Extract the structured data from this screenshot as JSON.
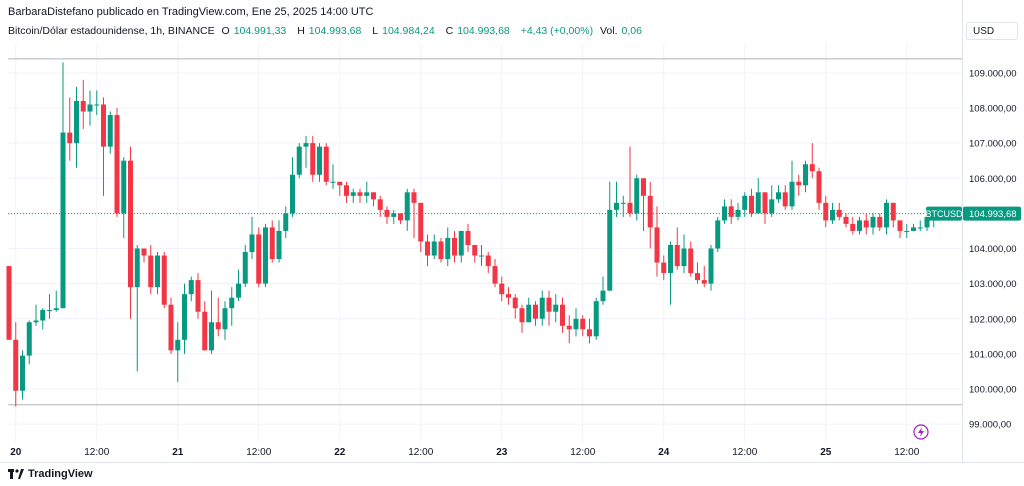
{
  "header": {
    "publisher": "BarbaraDistefano publicado en TradingView.com, Ene 25, 2025 14:00 UTC",
    "symbol": "Bitcoin/Dólar estadounidense, 1h, BINANCE",
    "o_label": "O",
    "o_value": "104.991,33",
    "h_label": "H",
    "h_value": "104.993,68",
    "l_label": "L",
    "l_value": "104.984,24",
    "c_label": "C",
    "c_value": "104.993,68",
    "change": "+4,43 (+0,00%)",
    "vol_label": "Vol.",
    "vol_value": "0,06"
  },
  "currency": "USD",
  "price_tag": {
    "symbol": "BTCUSD",
    "value": "104.993,68",
    "color": "#089981"
  },
  "footer": {
    "brand": "TradingView"
  },
  "colors": {
    "up": "#089981",
    "down": "#f23645",
    "grid": "#f0f3fa",
    "line": "#b2b5be"
  },
  "chart_data": {
    "type": "candlestick",
    "title": "Bitcoin/Dólar estadounidense, 1h, BINANCE",
    "ylim": [
      98600,
      109800
    ],
    "yticks": [
      99000,
      100000,
      101000,
      102000,
      103000,
      104000,
      105000,
      106000,
      107000,
      108000,
      109000
    ],
    "ytick_labels": [
      "99.000,00",
      "100.000,00",
      "101.000,00",
      "102.000,00",
      "103.000,00",
      "104.000,00",
      "105.000,00",
      "106.000,00",
      "107.000,00",
      "108.000,00",
      "109.000,00"
    ],
    "xticks": [
      {
        "i": 1,
        "label": "20"
      },
      {
        "i": 13,
        "label": "12:00"
      },
      {
        "i": 25,
        "label": "21"
      },
      {
        "i": 37,
        "label": "12:00"
      },
      {
        "i": 49,
        "label": "22"
      },
      {
        "i": 61,
        "label": "12:00"
      },
      {
        "i": 73,
        "label": "23"
      },
      {
        "i": 85,
        "label": "12:00"
      },
      {
        "i": 97,
        "label": "24"
      },
      {
        "i": 109,
        "label": "12:00"
      },
      {
        "i": 121,
        "label": "25"
      },
      {
        "i": 133,
        "label": "12:00"
      }
    ],
    "range_lines": [
      109400,
      99550
    ],
    "last_price": 104993.68,
    "candles": [
      [
        103500,
        101400,
        103500,
        101400
      ],
      [
        101400,
        99950,
        101900,
        99500
      ],
      [
        99950,
        100950,
        101100,
        99700
      ],
      [
        100950,
        101900,
        101950,
        100700
      ],
      [
        101900,
        101950,
        102400,
        101800
      ],
      [
        101950,
        102250,
        102300,
        101700
      ],
      [
        102250,
        102250,
        102700,
        102000
      ],
      [
        102250,
        102300,
        102800,
        102200
      ],
      [
        102300,
        107300,
        109300,
        102300
      ],
      [
        107300,
        107000,
        108300,
        106500
      ],
      [
        107000,
        108200,
        108600,
        106300
      ],
      [
        108200,
        107900,
        108800,
        107400
      ],
      [
        107900,
        108100,
        108500,
        107500
      ],
      [
        108100,
        108100,
        108500,
        107800
      ],
      [
        108100,
        106900,
        108300,
        105500
      ],
      [
        106900,
        107800,
        107900,
        106700
      ],
      [
        107800,
        105000,
        108000,
        104900
      ],
      [
        105000,
        106500,
        106600,
        104300
      ],
      [
        106500,
        102900,
        106900,
        102000
      ],
      [
        102900,
        104000,
        104100,
        100500
      ],
      [
        104000,
        103800,
        104000,
        103600
      ],
      [
        103800,
        102900,
        104100,
        102700
      ],
      [
        102900,
        103800,
        103900,
        102700
      ],
      [
        103800,
        102400,
        103900,
        102300
      ],
      [
        102400,
        101100,
        102600,
        101000
      ],
      [
        101100,
        101400,
        101900,
        100200
      ],
      [
        101400,
        102700,
        103000,
        101000
      ],
      [
        102700,
        103100,
        103200,
        102500
      ],
      [
        103100,
        102200,
        103300,
        102000
      ],
      [
        102200,
        101100,
        102500,
        101100
      ],
      [
        101100,
        101900,
        102800,
        101000
      ],
      [
        101900,
        101700,
        102600,
        101500
      ],
      [
        101700,
        102300,
        102500,
        101400
      ],
      [
        102300,
        102600,
        102900,
        101800
      ],
      [
        102600,
        103000,
        103400,
        102500
      ],
      [
        103000,
        103900,
        104100,
        102900
      ],
      [
        103900,
        104400,
        104900,
        103700
      ],
      [
        104400,
        103000,
        104600,
        102900
      ],
      [
        103000,
        104600,
        104700,
        102900
      ],
      [
        104600,
        103700,
        104800,
        103600
      ],
      [
        103700,
        104500,
        104800,
        103600
      ],
      [
        104500,
        105000,
        105200,
        104300
      ],
      [
        105000,
        106100,
        106600,
        104900
      ],
      [
        106100,
        106900,
        107000,
        106000
      ],
      [
        106900,
        107000,
        107200,
        106300
      ],
      [
        107000,
        106100,
        107200,
        105900
      ],
      [
        106100,
        106900,
        107000,
        105900
      ],
      [
        106900,
        105900,
        107000,
        105800
      ],
      [
        105900,
        105900,
        106400,
        105700
      ],
      [
        105900,
        105800,
        105900,
        105500
      ],
      [
        105800,
        105500,
        105900,
        105300
      ],
      [
        105500,
        105600,
        105700,
        105300
      ],
      [
        105600,
        105500,
        105700,
        105300
      ],
      [
        105500,
        105600,
        105900,
        105300
      ],
      [
        105600,
        105400,
        105600,
        105200
      ],
      [
        105400,
        105100,
        105500,
        104900
      ],
      [
        105100,
        104900,
        105200,
        104700
      ],
      [
        104900,
        105000,
        105100,
        104700
      ],
      [
        105000,
        104800,
        105000,
        104700
      ],
      [
        104800,
        105600,
        105700,
        104500
      ],
      [
        105600,
        105300,
        105700,
        104300
      ],
      [
        105300,
        104200,
        105300,
        103900
      ],
      [
        104200,
        103800,
        104400,
        103500
      ],
      [
        103800,
        104200,
        104400,
        103700
      ],
      [
        104200,
        103700,
        104300,
        103600
      ],
      [
        103700,
        104300,
        104600,
        103500
      ],
      [
        104300,
        103800,
        104500,
        103600
      ],
      [
        103800,
        104500,
        104500,
        103600
      ],
      [
        104500,
        104100,
        104700,
        103900
      ],
      [
        104100,
        103800,
        104100,
        103600
      ],
      [
        103800,
        103800,
        104100,
        103500
      ],
      [
        103800,
        103500,
        103900,
        103300
      ],
      [
        103500,
        103000,
        103700,
        102900
      ],
      [
        103000,
        102700,
        103200,
        102500
      ],
      [
        102700,
        102600,
        102900,
        102400
      ],
      [
        102600,
        102300,
        102700,
        102000
      ],
      [
        102300,
        101900,
        102400,
        101600
      ],
      [
        101900,
        102400,
        102600,
        101900
      ],
      [
        102400,
        102000,
        102500,
        101800
      ],
      [
        102000,
        102600,
        102800,
        101800
      ],
      [
        102600,
        102200,
        102800,
        101800
      ],
      [
        102200,
        102400,
        102700,
        101900
      ],
      [
        102400,
        101800,
        102600,
        101600
      ],
      [
        101800,
        101700,
        102100,
        101300
      ],
      [
        101700,
        102000,
        102300,
        101500
      ],
      [
        102000,
        101700,
        102100,
        101500
      ],
      [
        101700,
        101500,
        102000,
        101300
      ],
      [
        101500,
        102500,
        102600,
        101400
      ],
      [
        102500,
        102800,
        103200,
        102400
      ],
      [
        102800,
        105100,
        105900,
        102800
      ],
      [
        105100,
        105300,
        105900,
        104900
      ],
      [
        105300,
        105300,
        105500,
        104900
      ],
      [
        105300,
        105000,
        106900,
        104900
      ],
      [
        105000,
        106000,
        106100,
        104800
      ],
      [
        106000,
        105500,
        106000,
        104500
      ],
      [
        105500,
        104600,
        105900,
        104000
      ],
      [
        104600,
        103600,
        105200,
        103200
      ],
      [
        103600,
        103300,
        103800,
        103100
      ],
      [
        103300,
        104100,
        104200,
        102400
      ],
      [
        104100,
        103500,
        104600,
        103400
      ],
      [
        103500,
        104000,
        104400,
        103300
      ],
      [
        104000,
        103300,
        104200,
        103200
      ],
      [
        103300,
        103100,
        103600,
        103000
      ],
      [
        103100,
        103000,
        103500,
        102900
      ],
      [
        103000,
        104000,
        104100,
        102800
      ],
      [
        104000,
        104800,
        104900,
        103900
      ],
      [
        104800,
        105200,
        105400,
        104700
      ],
      [
        105200,
        104900,
        105400,
        104700
      ],
      [
        104900,
        105100,
        105300,
        104800
      ],
      [
        105100,
        105500,
        105600,
        104900
      ],
      [
        105500,
        105000,
        105700,
        104900
      ],
      [
        105000,
        105600,
        106000,
        105000
      ],
      [
        105600,
        105000,
        105600,
        104700
      ],
      [
        105000,
        105400,
        105800,
        104900
      ],
      [
        105400,
        105600,
        105800,
        105300
      ],
      [
        105600,
        105200,
        105800,
        105100
      ],
      [
        105200,
        105900,
        106500,
        105100
      ],
      [
        105900,
        105800,
        106100,
        105500
      ],
      [
        105800,
        106400,
        106500,
        105600
      ],
      [
        106400,
        106200,
        107000,
        106000
      ],
      [
        106200,
        105300,
        106300,
        105100
      ],
      [
        105300,
        104800,
        105500,
        104600
      ],
      [
        104800,
        105100,
        105300,
        104700
      ],
      [
        105100,
        104900,
        105300,
        104800
      ],
      [
        104900,
        104700,
        105000,
        104600
      ],
      [
        104700,
        104500,
        104900,
        104400
      ],
      [
        104500,
        104800,
        104900,
        104400
      ],
      [
        104800,
        104600,
        105000,
        104400
      ],
      [
        104600,
        104900,
        105000,
        104400
      ],
      [
        104900,
        104600,
        105000,
        104500
      ],
      [
        104600,
        105300,
        105400,
        104400
      ],
      [
        105300,
        104800,
        105300,
        104600
      ],
      [
        104800,
        104500,
        104800,
        104300
      ],
      [
        104500,
        104500,
        104700,
        104300
      ],
      [
        104500,
        104600,
        104700,
        104500
      ],
      [
        104600,
        104600,
        104800,
        104500
      ],
      [
        104600,
        104900,
        104900,
        104500
      ],
      [
        104900,
        104900,
        105100,
        104600
      ],
      [
        104900,
        105000,
        105100,
        104800
      ],
      [
        105000,
        105000,
        105100,
        104900
      ],
      [
        105000,
        104994,
        105000,
        104984
      ]
    ]
  }
}
